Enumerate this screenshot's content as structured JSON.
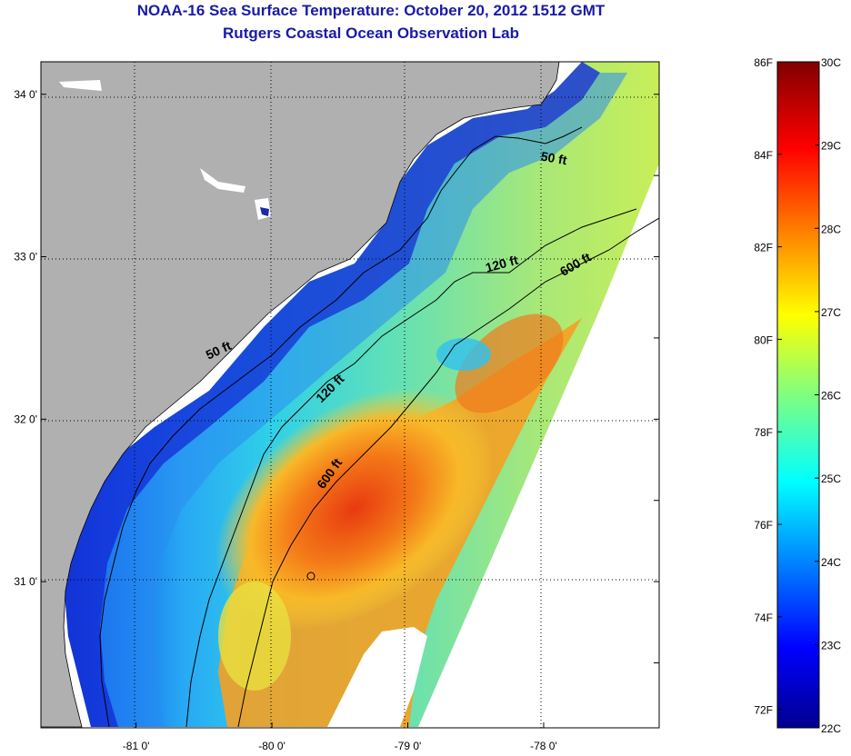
{
  "header": {
    "title": "NOAA-16 Sea Surface Temperature:  October 20, 2012 1512 GMT",
    "subtitle": "Rutgers Coastal Ocean Observation Lab"
  },
  "map": {
    "lon_range": [
      -81.7,
      -77.15
    ],
    "lat_range": [
      30.1,
      34.2
    ],
    "lon_ticks": [
      {
        "value": -81,
        "label": "-81 0'"
      },
      {
        "value": -80,
        "label": "-80 0'"
      },
      {
        "value": -79,
        "label": "-79 0'"
      },
      {
        "value": -78,
        "label": "-78 0'"
      }
    ],
    "lat_ticks": [
      {
        "value": 34,
        "label": "34 0'"
      },
      {
        "value": 33,
        "label": "33 0'"
      },
      {
        "value": 32,
        "label": "32 0'"
      },
      {
        "value": 31,
        "label": "31 0'"
      }
    ],
    "grid": "dotted",
    "contour_labels": [
      {
        "text": "50 ft",
        "lon": -77.93,
        "lat": 33.58,
        "angle": 10
      },
      {
        "text": "50 ft",
        "lon": -80.38,
        "lat": 32.4,
        "angle": -25
      },
      {
        "text": "120 ft",
        "lon": -78.3,
        "lat": 32.93,
        "angle": -15
      },
      {
        "text": "120 ft",
        "lon": -79.55,
        "lat": 32.17,
        "angle": -45
      },
      {
        "text": "600 ft",
        "lon": -77.75,
        "lat": 32.93,
        "angle": -30
      },
      {
        "text": "600 ft",
        "lon": -79.55,
        "lat": 31.65,
        "angle": -55
      }
    ],
    "colors": {
      "land": "#b0b0b0",
      "nodata": "#ffffff",
      "coast": "#000000"
    }
  },
  "colorbar": {
    "min_c": 22,
    "max_c": 30,
    "min_f": 72,
    "max_f": 86,
    "celsius_labels": [
      "30C",
      "29C",
      "28C",
      "27C",
      "26C",
      "25C",
      "24C",
      "23C",
      "22C"
    ],
    "fahrenheit_labels": [
      "86F",
      "84F",
      "82F",
      "80F",
      "78F",
      "76F",
      "74F",
      "72F"
    ],
    "colormap": "jet"
  }
}
